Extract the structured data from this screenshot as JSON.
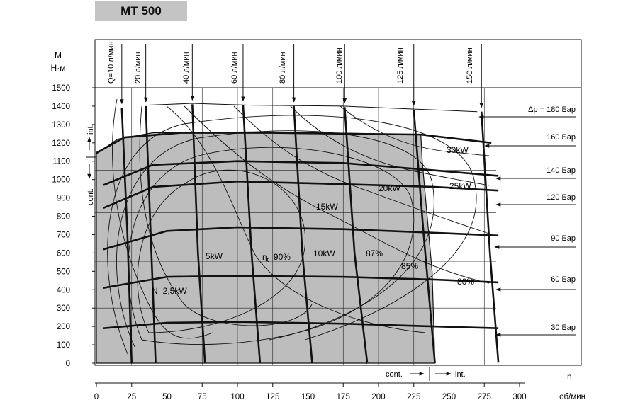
{
  "title": "MT 500",
  "chart_data": {
    "type": "line",
    "y_axis": {
      "label_line1": "M",
      "label_line2": "Н·м",
      "range": [
        0,
        1500
      ],
      "ticks": [
        0,
        100,
        200,
        300,
        400,
        500,
        600,
        700,
        800,
        900,
        1000,
        1100,
        1200,
        1300,
        1400,
        1500
      ]
    },
    "x_axis": {
      "label_n": "n",
      "unit": "об/мин",
      "range": [
        0,
        300
      ],
      "ticks": [
        0,
        25,
        50,
        75,
        100,
        125,
        150,
        175,
        200,
        225,
        250,
        275,
        300
      ]
    },
    "regions": {
      "int_label": "int.",
      "cont_label": "cont.",
      "cont_speed_label": "cont.",
      "int_speed_label": "int.",
      "cont_torque_max": 1260,
      "int_torque_max": 1400,
      "cont_speed_max": 240,
      "int_speed_max": 285
    },
    "pressure_lines": [
      {
        "label": "Δp = 180 Бар",
        "points": [
          [
            35,
            1405
          ],
          [
            68,
            1415
          ],
          [
            110,
            1405
          ],
          [
            175,
            1400
          ],
          [
            270,
            1370
          ]
        ]
      },
      {
        "label": "160 Бар",
        "points": [
          [
            0,
            1145
          ],
          [
            20,
            1230
          ],
          [
            60,
            1255
          ],
          [
            120,
            1255
          ],
          [
            230,
            1245
          ],
          [
            280,
            1200
          ]
        ]
      },
      {
        "label": "140 Бар",
        "points": [
          [
            5,
            970
          ],
          [
            40,
            1080
          ],
          [
            100,
            1100
          ],
          [
            175,
            1090
          ],
          [
            240,
            1050
          ],
          [
            285,
            1020
          ]
        ]
      },
      {
        "label": "120 Бар",
        "points": [
          [
            5,
            845
          ],
          [
            40,
            960
          ],
          [
            100,
            990
          ],
          [
            175,
            975
          ],
          [
            240,
            960
          ],
          [
            285,
            940
          ]
        ]
      },
      {
        "label": "90 Бар",
        "points": [
          [
            5,
            620
          ],
          [
            50,
            720
          ],
          [
            100,
            740
          ],
          [
            175,
            730
          ],
          [
            240,
            710
          ],
          [
            285,
            695
          ]
        ]
      },
      {
        "label": "60 Бар",
        "points": [
          [
            5,
            410
          ],
          [
            50,
            470
          ],
          [
            100,
            475
          ],
          [
            175,
            470
          ],
          [
            240,
            455
          ],
          [
            285,
            440
          ]
        ]
      },
      {
        "label": "30 Бар",
        "points": [
          [
            5,
            190
          ],
          [
            50,
            220
          ],
          [
            100,
            225
          ],
          [
            175,
            215
          ],
          [
            240,
            200
          ],
          [
            285,
            190
          ]
        ]
      }
    ],
    "flow_lines": [
      {
        "label": "Q=10 л/мин",
        "points": [
          [
            18,
            1390
          ],
          [
            22,
            700
          ],
          [
            25,
            0
          ]
        ]
      },
      {
        "label": "20 л/мин",
        "points": [
          [
            35,
            1400
          ],
          [
            39,
            600
          ],
          [
            42,
            0
          ]
        ]
      },
      {
        "label": "40 л/мин",
        "points": [
          [
            68,
            1410
          ],
          [
            72,
            600
          ],
          [
            77,
            0
          ]
        ]
      },
      {
        "label": "60 л/мин",
        "points": [
          [
            104,
            1405
          ],
          [
            110,
            600
          ],
          [
            116,
            0
          ]
        ]
      },
      {
        "label": "80 л/мин",
        "points": [
          [
            140,
            1400
          ],
          [
            146,
            600
          ],
          [
            153,
            0
          ]
        ]
      },
      {
        "label": "100 л/мин",
        "points": [
          [
            176,
            1395
          ],
          [
            183,
            600
          ],
          [
            192,
            0
          ]
        ]
      },
      {
        "label": "125 л/мин",
        "points": [
          [
            225,
            1380
          ],
          [
            232,
            700
          ],
          [
            240,
            0
          ]
        ]
      },
      {
        "label": "150 л/мин",
        "points": [
          [
            273,
            1370
          ],
          [
            279,
            600
          ],
          [
            285,
            0
          ]
        ]
      }
    ],
    "power_lines": [
      {
        "label": "N=2,5kW"
      },
      {
        "label": "5kW"
      },
      {
        "label": "10kW"
      },
      {
        "label": "15kW"
      },
      {
        "label": "20kW"
      },
      {
        "label": "25kW"
      },
      {
        "label": "30kW"
      }
    ],
    "efficiency_lines": [
      {
        "label": "η t=90%",
        "eta": "η",
        "eta_sub": "t",
        "value": "=90%"
      },
      {
        "label": "87%"
      },
      {
        "label": "85%"
      },
      {
        "label": "80%"
      }
    ]
  }
}
